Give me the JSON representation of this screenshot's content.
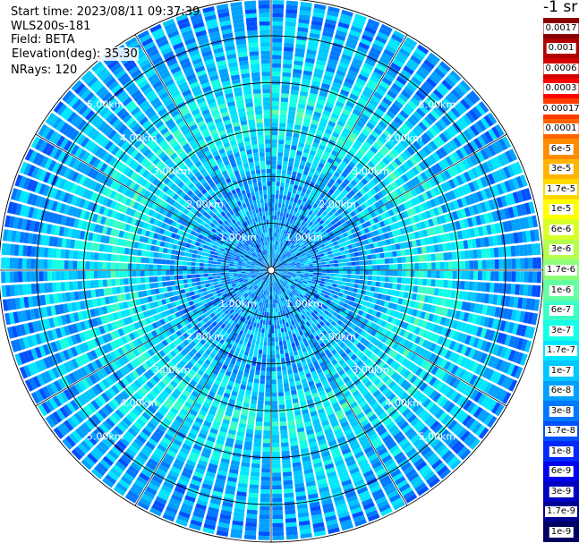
{
  "info": {
    "start_time": "Start time: 2023/08/11 09:37:39",
    "instrument": "WLS200s-181",
    "field": "Field: BETA",
    "elevation": "Elevation(deg): 35.30",
    "nrays": "NRays: 120"
  },
  "units_label": "-1 sr",
  "colorbar": [
    {
      "label": "0.0017",
      "color": "#8a0000"
    },
    {
      "label": "0.001",
      "color": "#b00000"
    },
    {
      "label": "0.0006",
      "color": "#d40000"
    },
    {
      "label": "0.0003",
      "color": "#ff0000"
    },
    {
      "label": "0.00017",
      "color": "#ff3c00"
    },
    {
      "label": "0.0001",
      "color": "#ff6400"
    },
    {
      "label": "6e-5",
      "color": "#ff8c00"
    },
    {
      "label": "3e-5",
      "color": "#ffb400"
    },
    {
      "label": "1.7e-5",
      "color": "#ffd800"
    },
    {
      "label": "1e-5",
      "color": "#ffff00"
    },
    {
      "label": "6e-6",
      "color": "#d8ff28"
    },
    {
      "label": "3e-6",
      "color": "#b4ff50"
    },
    {
      "label": "1.7e-6",
      "color": "#8cff78"
    },
    {
      "label": "1e-6",
      "color": "#64ffa0"
    },
    {
      "label": "6e-7",
      "color": "#3cffc8"
    },
    {
      "label": "3e-7",
      "color": "#14ffe6"
    },
    {
      "label": "1.7e-7",
      "color": "#00e6ff"
    },
    {
      "label": "1e-7",
      "color": "#00c8ff"
    },
    {
      "label": "6e-8",
      "color": "#00a0ff"
    },
    {
      "label": "3e-8",
      "color": "#0078ff"
    },
    {
      "label": "1.7e-8",
      "color": "#0050ff"
    },
    {
      "label": "1e-8",
      "color": "#0028ff"
    },
    {
      "label": "6e-9",
      "color": "#0000f0"
    },
    {
      "label": "3e-9",
      "color": "#0000c0"
    },
    {
      "label": "1.7e-9",
      "color": "#000090"
    },
    {
      "label": "1e-9",
      "color": "#000060"
    }
  ],
  "chart_data": {
    "type": "heatmap",
    "projection": "polar (PPI scan)",
    "title": "",
    "field": "BETA",
    "units": "-1 sr",
    "elevation_deg": 35.3,
    "n_rays": 120,
    "range_rings_km": [
      1.0,
      2.0,
      3.0,
      4.0,
      5.0
    ],
    "range_ring_labels": [
      "1.00km",
      "2.00km",
      "3.00km",
      "4.00km",
      "5.00km"
    ],
    "max_range_km": 5.8,
    "color_scale": "log",
    "value_range": [
      1e-09,
      0.0017
    ],
    "radial_profile_typical_value": [
      {
        "range_km": 0.5,
        "value": 5e-08
      },
      {
        "range_km": 1.5,
        "value": 6e-08
      },
      {
        "range_km": 2.5,
        "value": 9e-08
      },
      {
        "range_km": 3.3,
        "value": 2.5e-07
      },
      {
        "range_km": 4.0,
        "value": 1.2e-07
      },
      {
        "range_km": 5.0,
        "value": 7e-08
      },
      {
        "range_km": 5.7,
        "value": 5e-08
      }
    ],
    "grid": true
  }
}
